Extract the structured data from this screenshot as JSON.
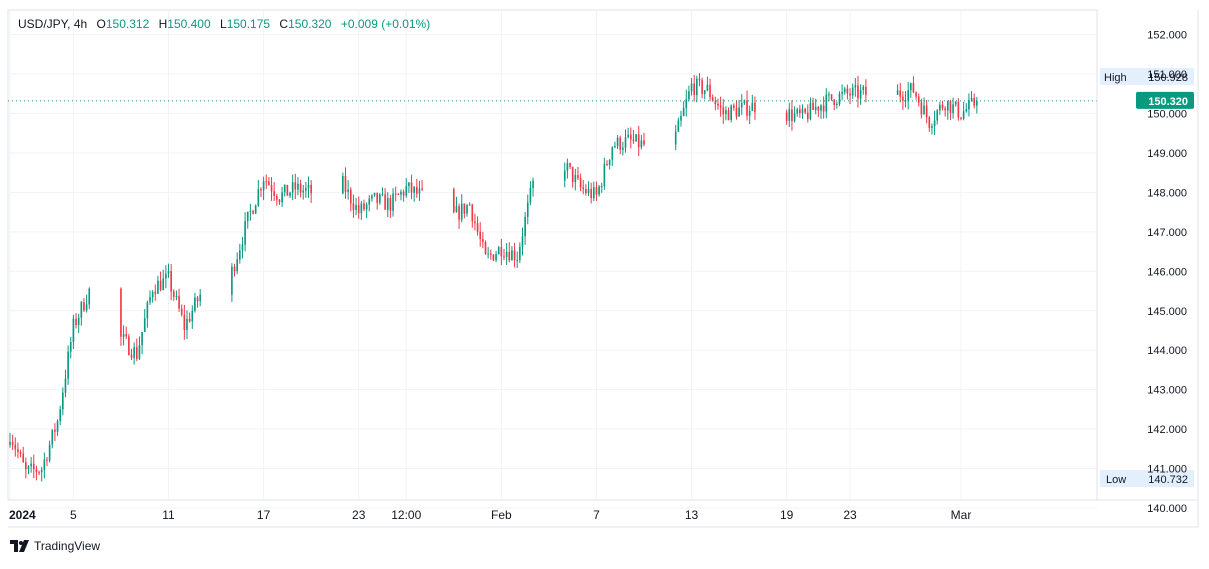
{
  "header": {
    "symbol": "USD/JPY",
    "interval": "4h",
    "open_label": "O",
    "open": "150.312",
    "high_label": "H",
    "high": "150.400",
    "low_label": "L",
    "low": "150.175",
    "close_label": "C",
    "close": "150.320",
    "change": "+0.009 (+0.01%)"
  },
  "brand": {
    "name": "TradingView"
  },
  "colors": {
    "up": "#089981",
    "down": "#f23645",
    "grid": "#f0f3fa",
    "axis_text": "#131722",
    "price_tag": "#089981",
    "hl_tag": "#e3effd"
  },
  "chart_data": {
    "type": "candlestick",
    "title": "",
    "xlabel": "",
    "ylabel": "",
    "ylim": [
      139.7,
      152.2
    ],
    "y_ticks": [
      "140.000",
      "141.000",
      "142.000",
      "143.000",
      "144.000",
      "145.000",
      "146.000",
      "147.000",
      "148.000",
      "149.000",
      "150.000",
      "151.000",
      "152.000"
    ],
    "x_ticks": [
      {
        "label": "2024",
        "date": "2024-01-01"
      },
      {
        "label": "5",
        "date": "2024-01-05"
      },
      {
        "label": "11",
        "date": "2024-01-11"
      },
      {
        "label": "17",
        "date": "2024-01-17"
      },
      {
        "label": "23",
        "date": "2024-01-23"
      },
      {
        "label": "12:00",
        "date": "2024-01-26"
      },
      {
        "label": "Feb",
        "date": "2024-02-01"
      },
      {
        "label": "7",
        "date": "2024-02-07"
      },
      {
        "label": "13",
        "date": "2024-02-13"
      },
      {
        "label": "19",
        "date": "2024-02-19"
      },
      {
        "label": "23",
        "date": "2024-02-23"
      },
      {
        "label": "Mar",
        "date": "2024-03-01"
      }
    ],
    "grid": true,
    "last_price": 150.32,
    "last_price_label": "150.320",
    "high_marker": {
      "label": "High",
      "value": "150.928"
    },
    "low_marker": {
      "label": "Low",
      "value": "140.732"
    },
    "anchors": [
      [
        "2024-01-01",
        141.9
      ],
      [
        "2024-01-02",
        140.9
      ],
      [
        "2024-01-03",
        141.0
      ],
      [
        "2024-01-04",
        142.2
      ],
      [
        "2024-01-05",
        144.6
      ],
      [
        "2024-01-06",
        145.5
      ],
      [
        "2024-01-08",
        144.3
      ],
      [
        "2024-01-09",
        143.9
      ],
      [
        "2024-01-10",
        145.6
      ],
      [
        "2024-01-11",
        145.8
      ],
      [
        "2024-01-12",
        144.6
      ],
      [
        "2024-01-13",
        145.4
      ],
      [
        "2024-01-15",
        146.0
      ],
      [
        "2024-01-16",
        147.3
      ],
      [
        "2024-01-17",
        148.4
      ],
      [
        "2024-01-18",
        147.9
      ],
      [
        "2024-01-19",
        148.1
      ],
      [
        "2024-01-20",
        148.0
      ],
      [
        "2024-01-22",
        148.2
      ],
      [
        "2024-01-23",
        147.5
      ],
      [
        "2024-01-24",
        147.8
      ],
      [
        "2024-01-25",
        147.7
      ],
      [
        "2024-01-26",
        148.1
      ],
      [
        "2024-01-27",
        147.9
      ],
      [
        "2024-01-29",
        147.4
      ],
      [
        "2024-01-30",
        147.7
      ],
      [
        "2024-01-31",
        146.3
      ],
      [
        "2024-02-01",
        146.6
      ],
      [
        "2024-02-02",
        146.4
      ],
      [
        "2024-02-03",
        148.2
      ],
      [
        "2024-02-05",
        148.7
      ],
      [
        "2024-02-06",
        148.1
      ],
      [
        "2024-02-07",
        147.9
      ],
      [
        "2024-02-08",
        149.2
      ],
      [
        "2024-02-09",
        149.3
      ],
      [
        "2024-02-10",
        149.2
      ],
      [
        "2024-02-12",
        149.4
      ],
      [
        "2024-02-13",
        150.7
      ],
      [
        "2024-02-14",
        150.6
      ],
      [
        "2024-02-15",
        150.0
      ],
      [
        "2024-02-16",
        150.1
      ],
      [
        "2024-02-17",
        150.2
      ],
      [
        "2024-02-19",
        150.0
      ],
      [
        "2024-02-20",
        149.9
      ],
      [
        "2024-02-21",
        150.2
      ],
      [
        "2024-02-22",
        150.4
      ],
      [
        "2024-02-23",
        150.5
      ],
      [
        "2024-02-24",
        150.5
      ],
      [
        "2024-02-26",
        150.5
      ],
      [
        "2024-02-27",
        150.6
      ],
      [
        "2024-02-28",
        149.8
      ],
      [
        "2024-02-29",
        150.3
      ],
      [
        "2024-03-01",
        150.0
      ],
      [
        "2024-03-02",
        150.3
      ]
    ]
  }
}
